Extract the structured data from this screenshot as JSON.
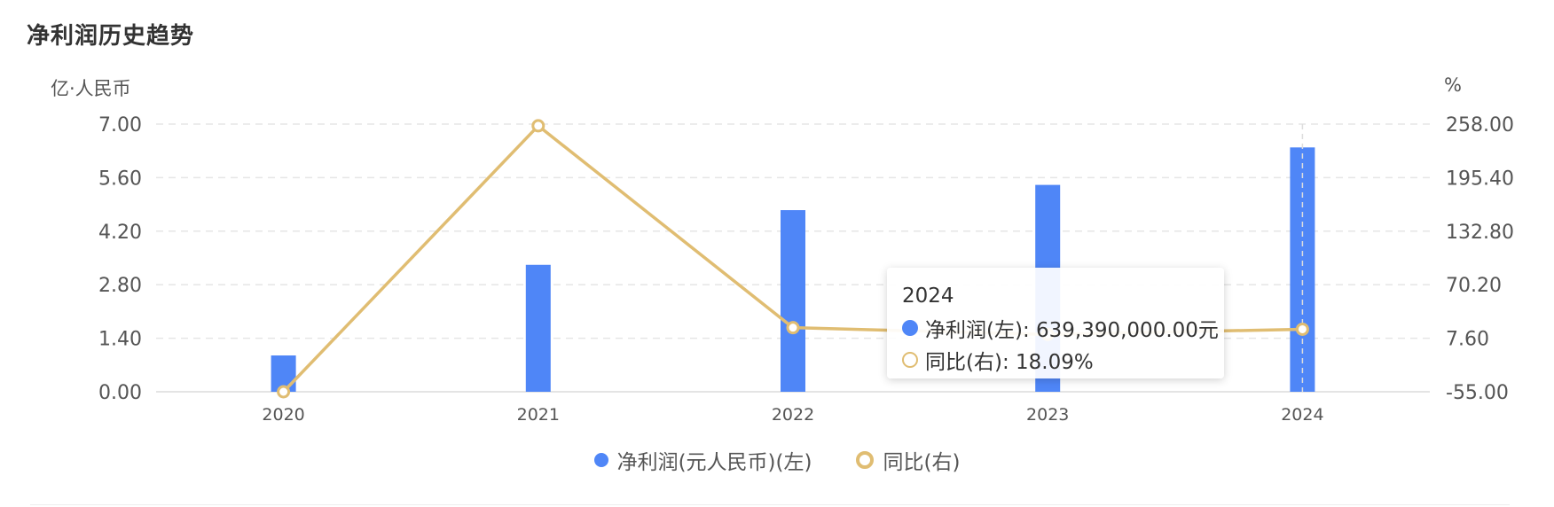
{
  "title": "净利润历史趋势",
  "units": {
    "left": "亿·人民币",
    "right": "%"
  },
  "colors": {
    "bar": "#4f86f7",
    "line": "#e0bd72",
    "grid": "#e6e6e6",
    "axis_text": "#555555"
  },
  "chart_data": {
    "type": "bar",
    "categories": [
      "2020",
      "2021",
      "2022",
      "2023",
      "2024"
    ],
    "series": [
      {
        "name": "净利润(元人民币)(左)",
        "type": "bar",
        "axis": "left",
        "values": [
          0.95,
          3.32,
          4.75,
          5.41,
          6.39
        ]
      },
      {
        "name": "同比(右)",
        "type": "line",
        "axis": "right",
        "values": [
          -55.0,
          256.0,
          20.0,
          12.0,
          18.09
        ]
      }
    ],
    "y_left": {
      "ticks": [
        "7.00",
        "5.60",
        "4.20",
        "2.80",
        "1.40",
        "0.00"
      ],
      "ylim": [
        0,
        7
      ]
    },
    "y_right": {
      "ticks": [
        "258.00",
        "195.40",
        "132.80",
        "70.20",
        "7.60",
        "-55.00"
      ],
      "ylim": [
        -55,
        258
      ]
    },
    "grid": true,
    "legend_position": "bottom-center"
  },
  "tooltip": {
    "year": "2024",
    "bar_label": "净利润(左): 639,390,000.00元",
    "line_label": "同比(右): 18.09%"
  },
  "legend": {
    "bar": "净利润(元人民币)(左)",
    "line": "同比(右)"
  }
}
